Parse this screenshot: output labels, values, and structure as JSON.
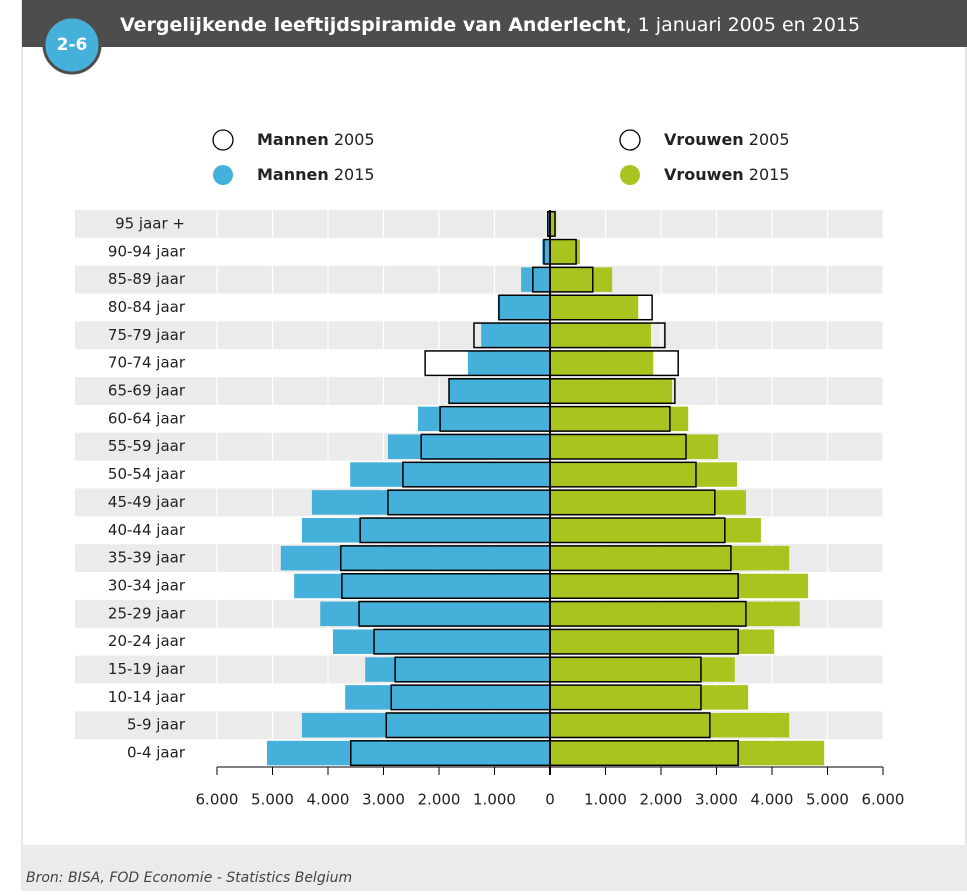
{
  "badge": "2-6",
  "footer": "Bron: BISA, FOD Economie - Statistics Belgium",
  "chart_data": {
    "type": "pyramid",
    "title": "Vergelijkende leeftijdspiramide van Anderlecht",
    "subtitle": ", 1 januari 2005 en 2015",
    "categories": [
      "0-4 jaar",
      "5-9 jaar",
      "10-14 jaar",
      "15-19 jaar",
      "20-24 jaar",
      "25-29 jaar",
      "30-34 jaar",
      "35-39 jaar",
      "40-44 jaar",
      "45-49 jaar",
      "50-54 jaar",
      "55-59 jaar",
      "60-64 jaar",
      "65-69 jaar",
      "70-74 jaar",
      "75-79 jaar",
      "80-84 jaar",
      "85-89 jaar",
      "90-94 jaar",
      "95 jaar +"
    ],
    "series": [
      {
        "name": "Mannen 2015",
        "color": "#45b0d9",
        "side": "left",
        "style": "fill",
        "values": [
          5100,
          4470,
          3690,
          3330,
          3910,
          4140,
          4610,
          4850,
          4470,
          4290,
          3600,
          2920,
          2380,
          1820,
          1480,
          1240,
          940,
          520,
          140,
          50
        ]
      },
      {
        "name": "Vrouwen 2015",
        "color": "#a9c41f",
        "side": "right",
        "style": "fill",
        "values": [
          4940,
          4310,
          3570,
          3330,
          4040,
          4500,
          4650,
          4310,
          3800,
          3530,
          3370,
          3030,
          2490,
          2200,
          1860,
          1820,
          1590,
          1120,
          540,
          110
        ]
      },
      {
        "name": "Mannen 2005",
        "color": "#000000",
        "side": "left",
        "style": "outline",
        "values": [
          3590,
          2950,
          2860,
          2790,
          3170,
          3440,
          3750,
          3770,
          3420,
          2920,
          2650,
          2320,
          1980,
          1820,
          2250,
          1370,
          920,
          310,
          110,
          40
        ]
      },
      {
        "name": "Vrouwen 2005",
        "color": "#000000",
        "side": "right",
        "style": "outline",
        "values": [
          3390,
          2880,
          2720,
          2720,
          3390,
          3530,
          3390,
          3260,
          3150,
          2970,
          2630,
          2450,
          2160,
          2250,
          2310,
          2070,
          1840,
          770,
          470,
          90
        ]
      }
    ],
    "xlim": [
      -6000,
      6000
    ],
    "xticks": [
      {
        "value": -6000,
        "label": "6.000"
      },
      {
        "value": -5000,
        "label": "5.000"
      },
      {
        "value": -4000,
        "label": "4.000"
      },
      {
        "value": -3000,
        "label": "3.000"
      },
      {
        "value": -2000,
        "label": "2.000"
      },
      {
        "value": -1000,
        "label": "1.000"
      },
      0,
      {
        "value": 1000,
        "label": "1.000"
      },
      {
        "value": 2000,
        "label": "2.000"
      },
      {
        "value": 3000,
        "label": "3.000"
      },
      {
        "value": 4000,
        "label": "4.000"
      },
      {
        "value": 5000,
        "label": "5.000"
      },
      {
        "value": 6000,
        "label": "6.000"
      }
    ],
    "grid": true
  }
}
